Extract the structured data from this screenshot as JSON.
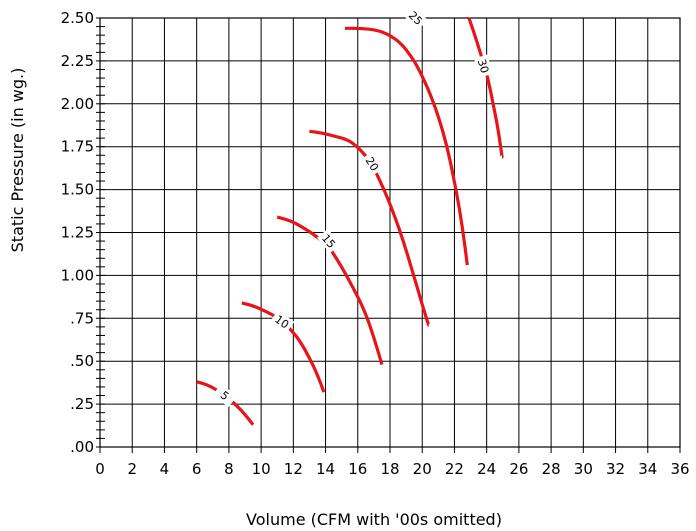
{
  "chart_data": {
    "type": "line",
    "title": "",
    "xlabel": "Volume (CFM with '00s omitted)",
    "ylabel": "Static Pressure (in wg.)",
    "xlim": [
      0,
      36
    ],
    "ylim": [
      0,
      2.5
    ],
    "grid": true,
    "x_tick_labels": [
      "0",
      "2",
      "4",
      "6",
      "8",
      "10",
      "12",
      "14",
      "16",
      "18",
      "20",
      "22",
      "24",
      "26",
      "28",
      "30",
      "32",
      "34",
      "36"
    ],
    "y_tick_labels": [
      ".00",
      ".25",
      ".50",
      ".75",
      "1.00",
      "1.25",
      "1.50",
      "1.75",
      "2.00",
      "2.25",
      "2.50"
    ],
    "line_color": "#e8141a",
    "series": [
      {
        "name": "5",
        "label_at": [
          7.75,
          0.3
        ],
        "points": [
          [
            6.0,
            0.38
          ],
          [
            6.6,
            0.365
          ],
          [
            7.2,
            0.335
          ],
          [
            7.9,
            0.29
          ],
          [
            8.5,
            0.24
          ],
          [
            9.0,
            0.19
          ],
          [
            9.5,
            0.13
          ]
        ]
      },
      {
        "name": "10",
        "label_at": [
          11.3,
          0.73
        ],
        "points": [
          [
            8.8,
            0.84
          ],
          [
            9.6,
            0.82
          ],
          [
            10.3,
            0.79
          ],
          [
            11.0,
            0.755
          ],
          [
            11.8,
            0.69
          ],
          [
            12.4,
            0.62
          ],
          [
            13.0,
            0.52
          ],
          [
            13.5,
            0.42
          ],
          [
            13.9,
            0.32
          ]
        ]
      },
      {
        "name": "15",
        "label_at": [
          14.2,
          1.2
        ],
        "points": [
          [
            11.0,
            1.34
          ],
          [
            11.8,
            1.32
          ],
          [
            12.6,
            1.28
          ],
          [
            13.4,
            1.23
          ],
          [
            14.2,
            1.17
          ],
          [
            15.0,
            1.05
          ],
          [
            15.7,
            0.93
          ],
          [
            16.4,
            0.8
          ],
          [
            17.0,
            0.64
          ],
          [
            17.5,
            0.48
          ]
        ]
      },
      {
        "name": "20",
        "label_at": [
          16.9,
          1.65
        ],
        "points": [
          [
            13.0,
            1.84
          ],
          [
            13.8,
            1.83
          ],
          [
            14.6,
            1.81
          ],
          [
            15.4,
            1.79
          ],
          [
            16.1,
            1.74
          ],
          [
            16.8,
            1.66
          ],
          [
            17.5,
            1.53
          ],
          [
            18.2,
            1.37
          ],
          [
            18.9,
            1.18
          ],
          [
            19.5,
            0.99
          ],
          [
            20.0,
            0.83
          ],
          [
            20.4,
            0.71
          ]
        ]
      },
      {
        "name": "25",
        "label_at": [
          19.6,
          2.5
        ],
        "points": [
          [
            15.2,
            2.44
          ],
          [
            16.2,
            2.44
          ],
          [
            17.2,
            2.43
          ],
          [
            18.0,
            2.4
          ],
          [
            18.7,
            2.35
          ],
          [
            19.3,
            2.28
          ],
          [
            19.8,
            2.2
          ],
          [
            20.4,
            2.08
          ],
          [
            21.0,
            1.93
          ],
          [
            21.6,
            1.73
          ],
          [
            22.1,
            1.5
          ],
          [
            22.5,
            1.28
          ],
          [
            22.8,
            1.06
          ]
        ]
      },
      {
        "name": "30",
        "label_at": [
          23.8,
          2.22
        ],
        "points": [
          [
            22.9,
            2.5
          ],
          [
            23.3,
            2.39
          ],
          [
            23.7,
            2.27
          ],
          [
            24.1,
            2.14
          ],
          [
            24.4,
            2.0
          ],
          [
            24.7,
            1.86
          ],
          [
            24.95,
            1.69
          ]
        ]
      }
    ]
  }
}
